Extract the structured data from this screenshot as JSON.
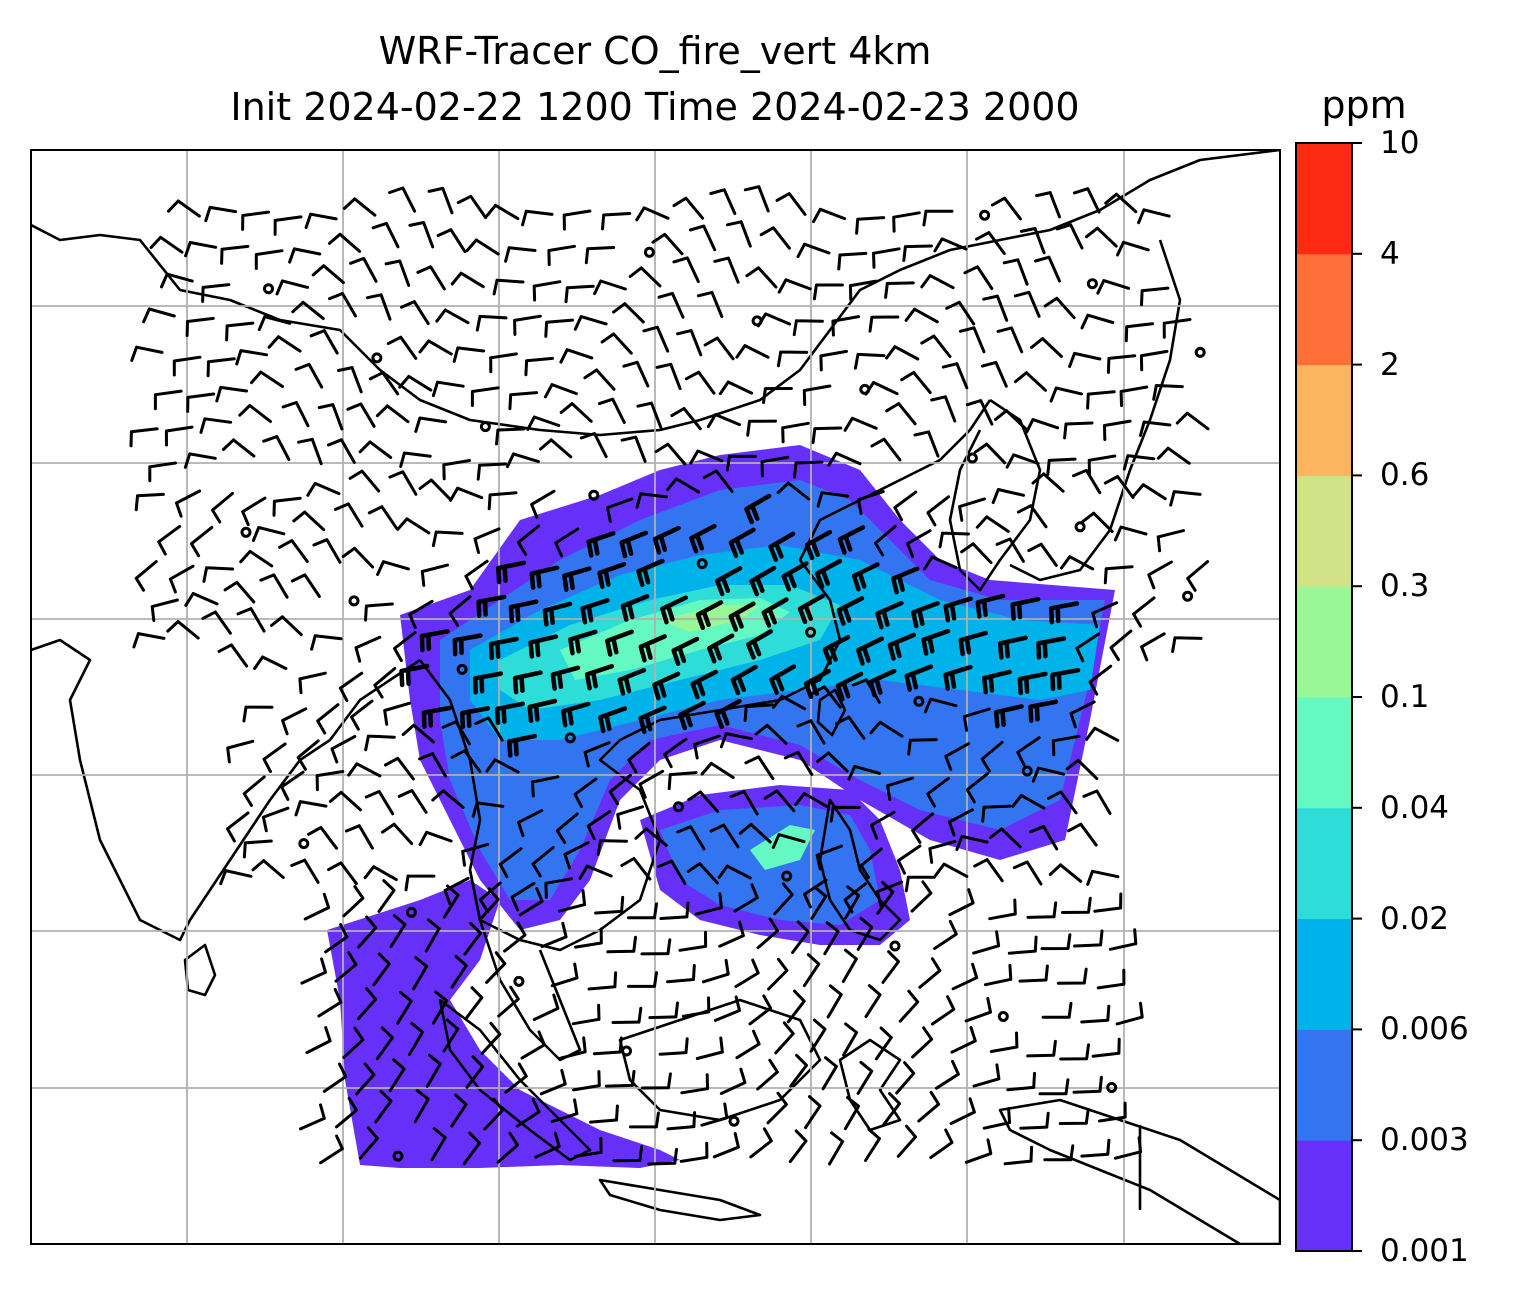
{
  "title_line1": "WRF-Tracer CO_fire_vert 4km",
  "title_line2": "Init 2024-02-22 1200 Time 2024-02-23 2000",
  "colorbar": {
    "unit": "ppm",
    "levels": [
      "0.001",
      "0.003",
      "0.006",
      "0.02",
      "0.04",
      "0.1",
      "0.3",
      "0.6",
      "2",
      "4",
      "10"
    ],
    "colors": [
      "#6730f8",
      "#3375f1",
      "#00b2ea",
      "#2edcd8",
      "#64f9c3",
      "#99f795",
      "#d2e287",
      "#fdb45f",
      "#ff6f39",
      "#ff2a14"
    ]
  },
  "map": {
    "field": "CO_fire_vert",
    "gridlines": true,
    "overlay": "wind-barbs",
    "coastline_color": "#000000",
    "grid_color": "#b0b0b0"
  }
}
